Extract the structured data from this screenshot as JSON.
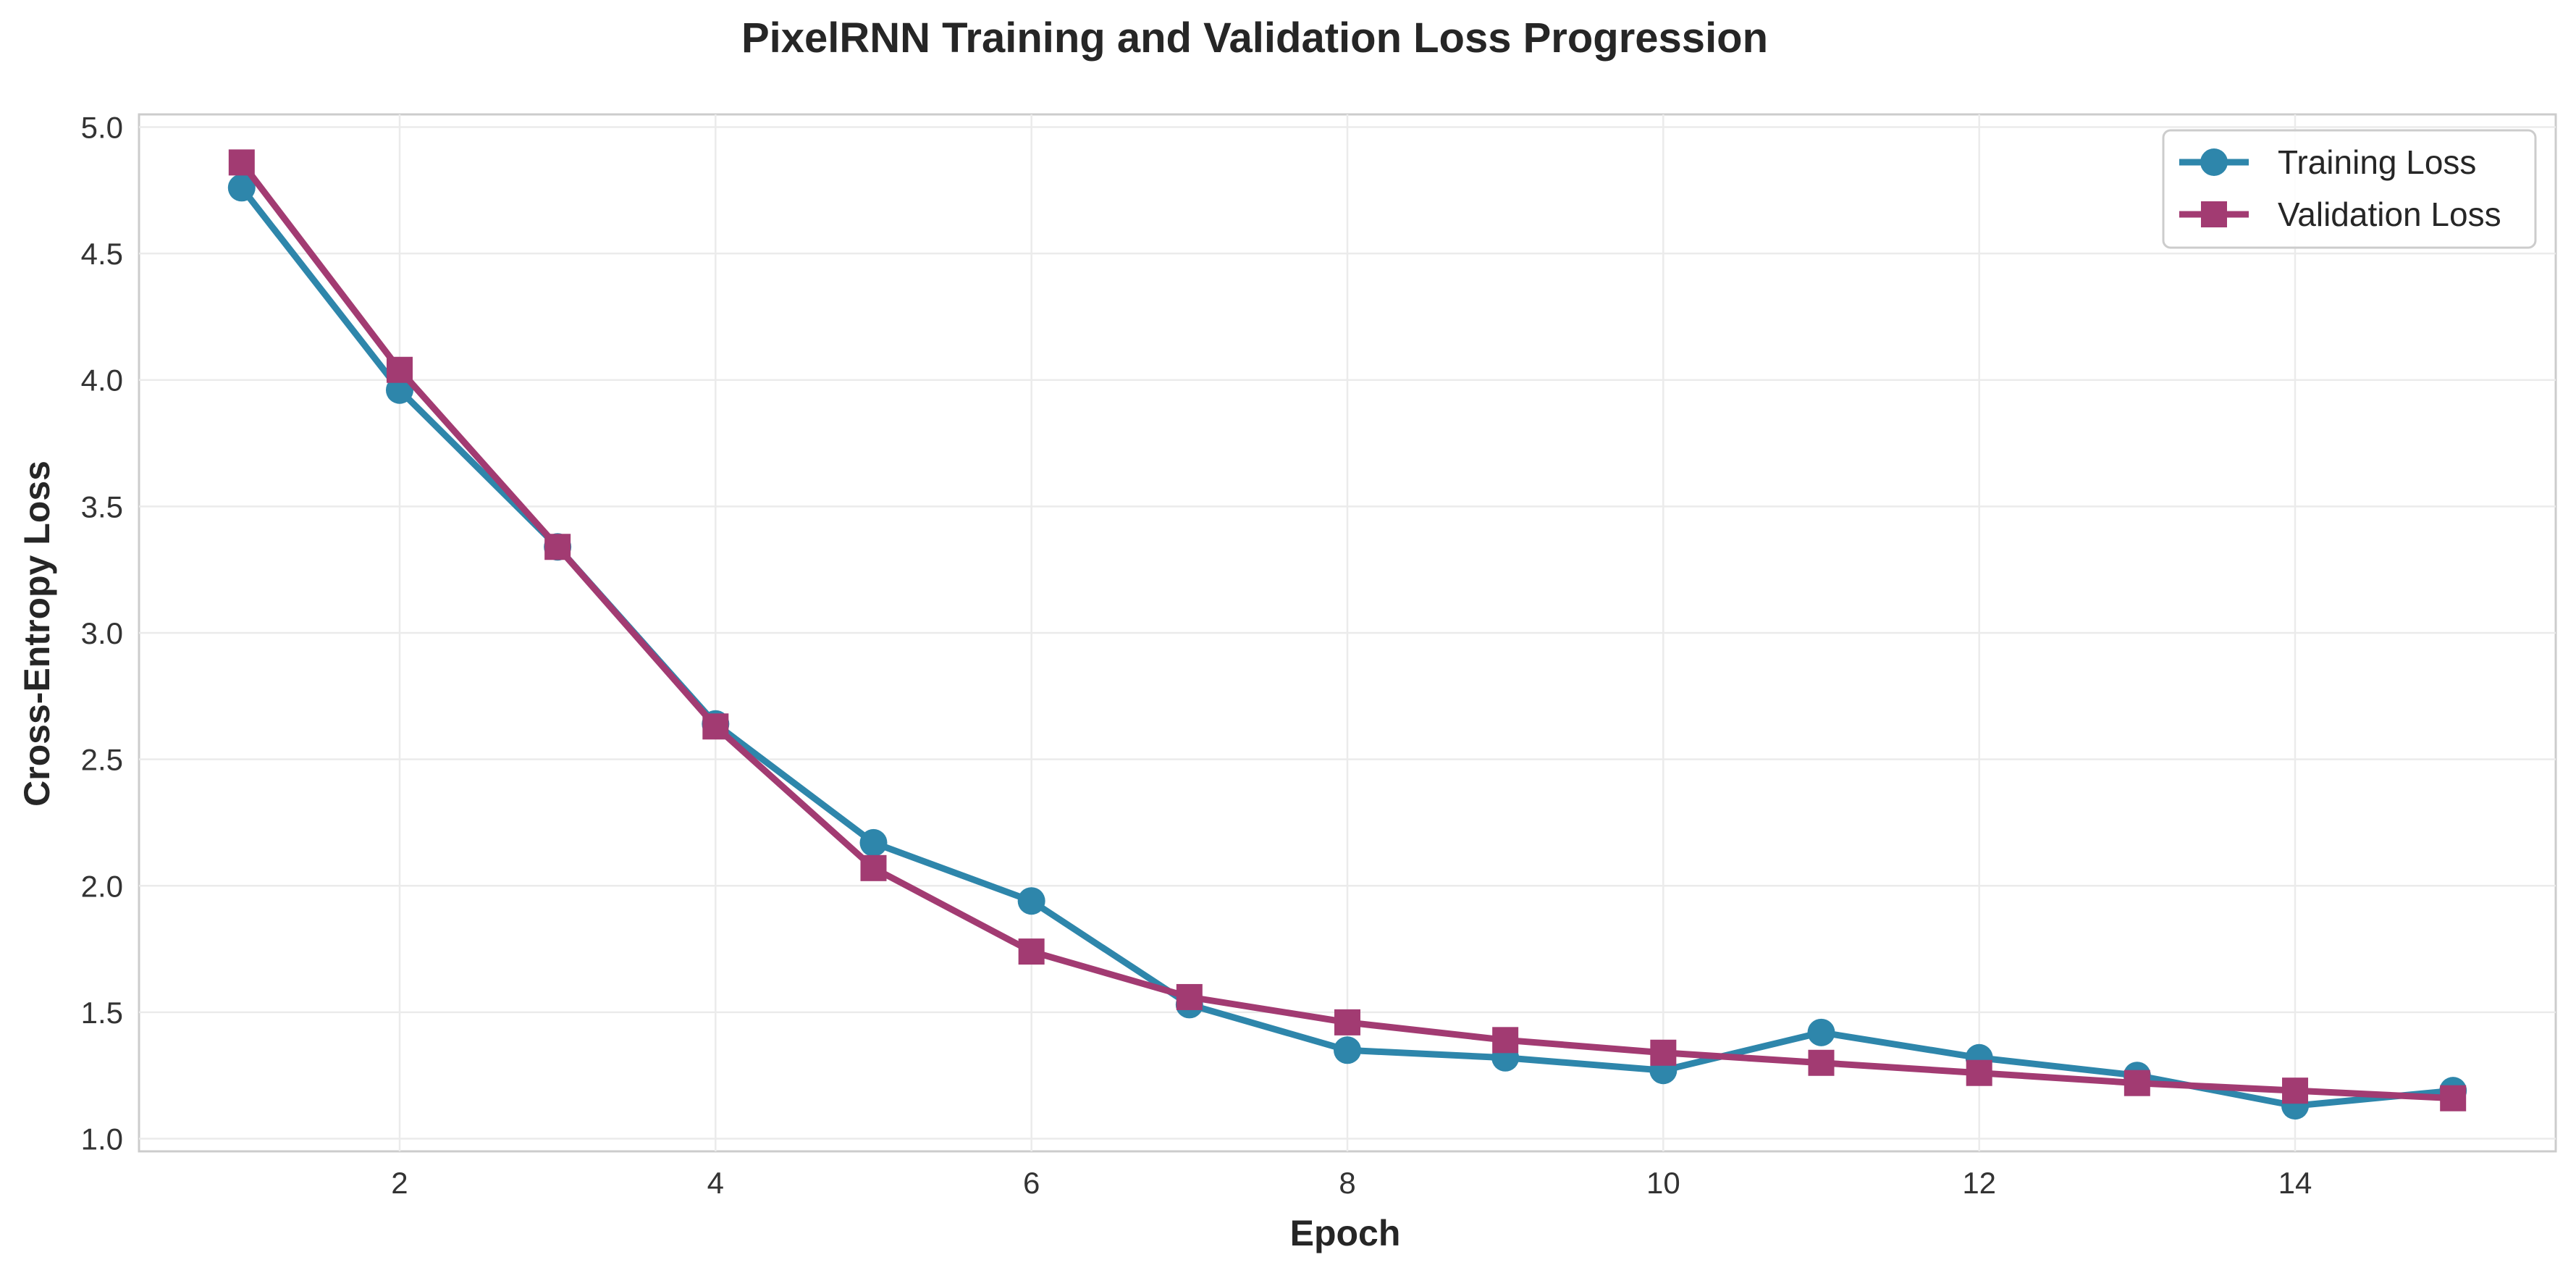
{
  "chart_data": {
    "type": "line",
    "title": "PixelRNN Training and Validation Loss Progression",
    "xlabel": "Epoch",
    "ylabel": "Cross-Entropy Loss",
    "x": [
      1,
      2,
      3,
      4,
      5,
      6,
      7,
      8,
      9,
      10,
      11,
      12,
      13,
      14,
      15
    ],
    "xlim": [
      0.35,
      15.65
    ],
    "ylim": [
      0.95,
      5.05
    ],
    "xticks": [
      2,
      4,
      6,
      8,
      10,
      12,
      14
    ],
    "yticks": [
      1.0,
      1.5,
      2.0,
      2.5,
      3.0,
      3.5,
      4.0,
      4.5,
      5.0
    ],
    "xtick_labels": [
      "2",
      "4",
      "6",
      "8",
      "10",
      "12",
      "14"
    ],
    "ytick_labels": [
      "1.0",
      "1.5",
      "2.0",
      "2.5",
      "3.0",
      "3.5",
      "4.0",
      "4.5",
      "5.0"
    ],
    "grid": true,
    "legend_position": "top-right",
    "series": [
      {
        "name": "Training Loss",
        "marker": "circle",
        "color": "#2E86AB",
        "values": [
          4.76,
          3.96,
          3.34,
          2.64,
          2.17,
          1.94,
          1.53,
          1.35,
          1.32,
          1.27,
          1.42,
          1.32,
          1.25,
          1.13,
          1.19
        ]
      },
      {
        "name": "Validation Loss",
        "marker": "square",
        "color": "#A23B72",
        "values": [
          4.86,
          4.04,
          3.34,
          2.63,
          2.07,
          1.74,
          1.56,
          1.46,
          1.39,
          1.34,
          1.3,
          1.26,
          1.22,
          1.19,
          1.16
        ]
      }
    ]
  }
}
